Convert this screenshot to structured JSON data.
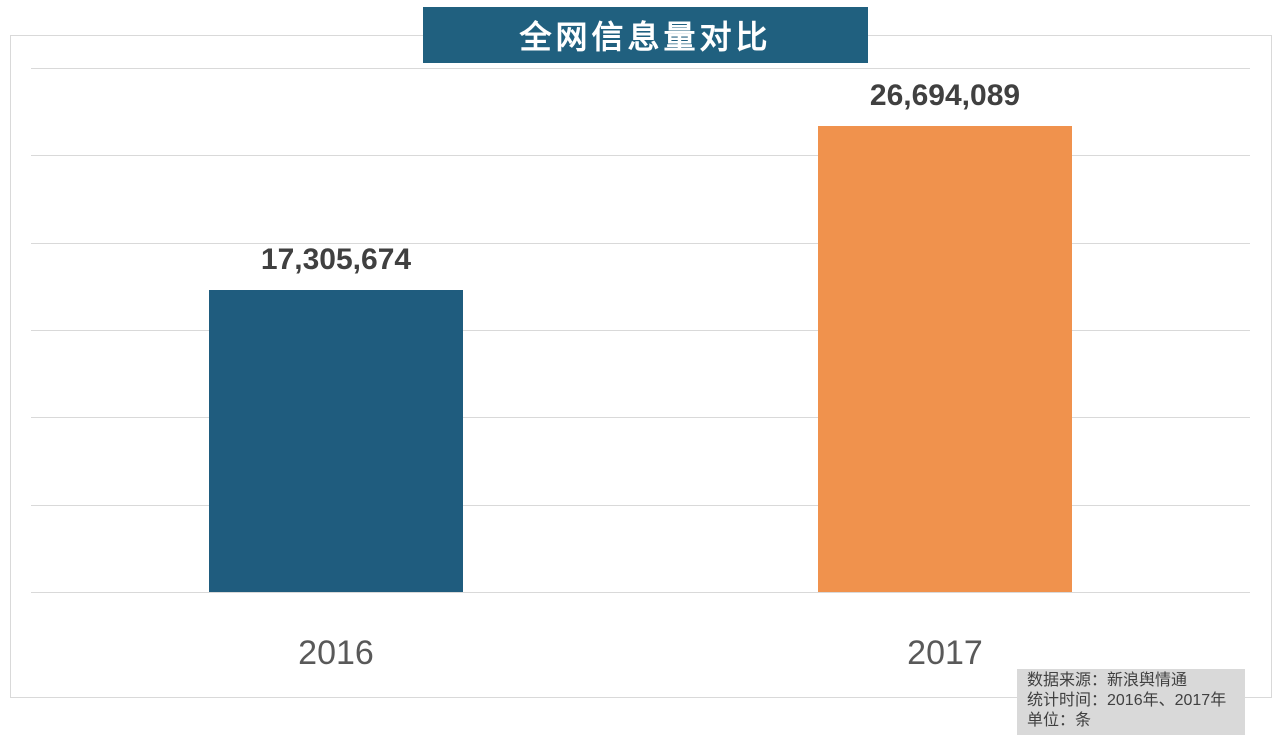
{
  "chart_data": {
    "type": "bar",
    "title": "全网信息量对比",
    "categories": [
      "2016",
      "2017"
    ],
    "values": [
      17305674,
      26694089
    ],
    "value_labels": [
      "17,305,674",
      "26,694,089"
    ],
    "xlabel": "",
    "ylabel": "",
    "ylim": [
      0,
      30000000
    ],
    "gridline_step": 5000000,
    "grid": "horizontal-only",
    "legend": "none",
    "bar_colors": [
      "#1f5c7e",
      "#f0924d"
    ],
    "colors": {
      "title_background": "#20607f",
      "title_text": "#ffffff",
      "value_label_text": "#404040",
      "axis_label_text": "#595959",
      "gridline": "#d9d9d9",
      "border": "#d9d9d9",
      "source_box_background": "#d9d9d9",
      "source_box_text": "#404040"
    }
  },
  "source_box": {
    "line1": "数据来源：新浪舆情通",
    "line2": "统计时间：2016年、2017年",
    "line3": "单位：条"
  }
}
